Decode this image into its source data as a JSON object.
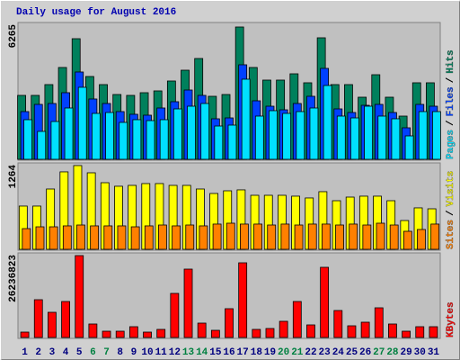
{
  "chart_data": [
    {
      "type": "bar",
      "title": "Daily usage for August 2016",
      "ylim": [
        0,
        6265
      ],
      "yticks": [
        6265
      ],
      "grid": false,
      "legend_separator": "/",
      "series": [
        {
          "name": "Hits",
          "color": "#00805c",
          "values": [
            2966,
            2966,
            3467,
            4261,
            5597,
            3843,
            3467,
            3007,
            2966,
            3091,
            3175,
            3634,
            4135,
            4678,
            2924,
            3007,
            6140,
            4261,
            3676,
            3676,
            3968,
            3551,
            5639,
            3467,
            3467,
            2882,
            3926,
            2882,
            2005,
            3551,
            3551
          ]
        },
        {
          "name": "Files",
          "color": "#0040ff",
          "values": [
            2214,
            2548,
            2590,
            3091,
            4052,
            2799,
            2590,
            2214,
            2089,
            2047,
            2381,
            2673,
            3216,
            2966,
            1880,
            1921,
            4386,
            2715,
            2464,
            2297,
            2590,
            2924,
            4219,
            2339,
            2172,
            2506,
            2548,
            2172,
            1462,
            2548,
            2464
          ]
        },
        {
          "name": "Pages",
          "color": "#00e0ff",
          "values": [
            1838,
            1295,
            1754,
            2381,
            3342,
            2130,
            2172,
            1713,
            1838,
            1796,
            1838,
            2339,
            2464,
            2590,
            1545,
            1587,
            3718,
            2005,
            2256,
            2130,
            2214,
            2381,
            3425,
            2005,
            1921,
            2464,
            2005,
            1880,
            1086,
            2214,
            2214
          ]
        }
      ]
    },
    {
      "type": "bar",
      "ylim": [
        0,
        1264
      ],
      "yticks": [
        1264
      ],
      "grid": false,
      "legend_separator": "/",
      "series": [
        {
          "name": "Visits",
          "color": "#ffff00",
          "values": [
            646,
            646,
            901,
            1157,
            1251,
            1143,
            995,
            942,
            955,
            982,
            982,
            955,
            955,
            901,
            834,
            874,
            888,
            807,
            807,
            807,
            794,
            767,
            861,
            726,
            780,
            794,
            794,
            726,
            430,
            619,
            605
          ]
        },
        {
          "name": "Sites",
          "color": "#ff8000",
          "values": [
            309,
            336,
            336,
            350,
            363,
            350,
            350,
            350,
            336,
            350,
            363,
            350,
            363,
            350,
            377,
            390,
            377,
            377,
            363,
            377,
            363,
            377,
            377,
            363,
            377,
            363,
            390,
            363,
            269,
            296,
            377
          ]
        }
      ]
    },
    {
      "type": "bar",
      "ylim": [
        0,
        26236823
      ],
      "yticks": [
        26236823
      ],
      "grid": false,
      "categories": [
        "1",
        "2",
        "3",
        "4",
        "5",
        "6",
        "7",
        "8",
        "9",
        "10",
        "11",
        "12",
        "13",
        "14",
        "15",
        "16",
        "17",
        "18",
        "19",
        "20",
        "21",
        "22",
        "23",
        "24",
        "25",
        "26",
        "27",
        "28",
        "29",
        "30",
        "31"
      ],
      "category_colors": [
        "#00007f",
        "#00007f",
        "#00007f",
        "#00007f",
        "#00007f",
        "#008040",
        "#008040",
        "#00007f",
        "#00007f",
        "#00007f",
        "#00007f",
        "#00007f",
        "#008040",
        "#008040",
        "#00007f",
        "#00007f",
        "#00007f",
        "#00007f",
        "#00007f",
        "#008040",
        "#008040",
        "#00007f",
        "#00007f",
        "#00007f",
        "#00007f",
        "#00007f",
        "#008040",
        "#008040",
        "#00007f",
        "#00007f",
        "#00007f"
      ],
      "series": [
        {
          "name": "KBytes",
          "color": "#ff0000",
          "values": [
            1711000,
            11978000,
            7985000,
            11407000,
            25952000,
            4278000,
            1996000,
            1996000,
            3422000,
            1711000,
            2567000,
            13974000,
            21674000,
            4563000,
            2281000,
            9126000,
            23670000,
            2567000,
            2852000,
            5133000,
            11407000,
            3993000,
            22244000,
            8555000,
            3707000,
            4848000,
            9411000,
            4278000,
            1996000,
            3422000,
            3422000
          ]
        }
      ]
    }
  ]
}
